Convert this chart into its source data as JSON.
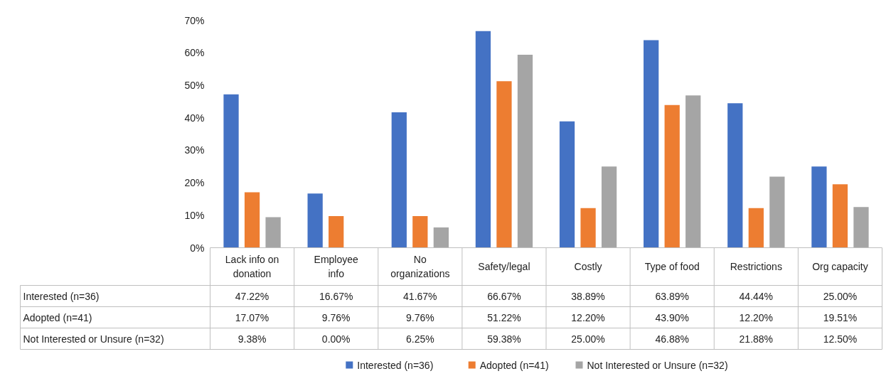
{
  "chart_data": {
    "type": "bar",
    "categories": [
      "Lack info on donation",
      "Employee info",
      "No organizations",
      "Safety/legal",
      "Costly",
      "Type of food",
      "Restrictions",
      "Org capacity"
    ],
    "series": [
      {
        "name": "Interested (n=36)",
        "color": "#4472c4",
        "values": [
          47.22,
          16.67,
          41.67,
          66.67,
          38.89,
          63.89,
          44.44,
          25.0
        ],
        "value_labels": [
          "47.22%",
          "16.67%",
          "41.67%",
          "66.67%",
          "38.89%",
          "63.89%",
          "44.44%",
          "25.00%"
        ]
      },
      {
        "name": "Adopted (n=41)",
        "color": "#ed7d31",
        "values": [
          17.07,
          9.76,
          9.76,
          51.22,
          12.2,
          43.9,
          12.2,
          19.51
        ],
        "value_labels": [
          "17.07%",
          "9.76%",
          "9.76%",
          "51.22%",
          "12.20%",
          "43.90%",
          "12.20%",
          "19.51%"
        ]
      },
      {
        "name": "Not Interested or Unsure (n=32)",
        "color": "#a5a5a5",
        "values": [
          9.38,
          0.0,
          6.25,
          59.38,
          25.0,
          46.88,
          21.88,
          12.5
        ],
        "value_labels": [
          "9.38%",
          "0.00%",
          "6.25%",
          "59.38%",
          "25.00%",
          "46.88%",
          "21.88%",
          "12.50%"
        ]
      }
    ],
    "ylim": [
      0,
      70
    ],
    "yticks": [
      {
        "value": 0,
        "label": "0%"
      },
      {
        "value": 10,
        "label": "10%"
      },
      {
        "value": 20,
        "label": "20%"
      },
      {
        "value": 30,
        "label": "30%"
      },
      {
        "value": 40,
        "label": "40%"
      },
      {
        "value": 50,
        "label": "50%"
      },
      {
        "value": 60,
        "label": "60%"
      },
      {
        "value": 70,
        "label": "70%"
      }
    ],
    "grid": false,
    "legend": "bottom"
  }
}
